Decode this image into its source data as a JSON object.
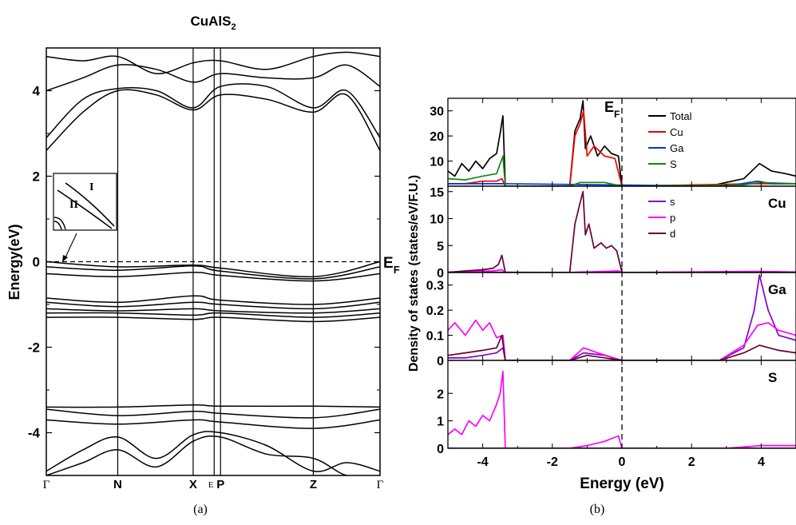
{
  "chart_data": [
    {
      "panel_label": "(a)",
      "type": "line",
      "title": "CuAlS",
      "title_sub": "2",
      "ylabel": "Energy(eV)",
      "ylim": [
        -5,
        5
      ],
      "yticks": [
        -4,
        -2,
        0,
        2,
        4
      ],
      "kpoint_labels": [
        "Γ",
        "N",
        "X",
        "E",
        "P",
        "Z",
        "Γ"
      ],
      "kpoint_positions": [
        0,
        0.214,
        0.44,
        0.503,
        0.522,
        0.8,
        1.0
      ],
      "fermi_label": "E",
      "fermi_sub": "F",
      "fermi_level": 0,
      "inset_labels": [
        "I",
        "II"
      ],
      "bands": [
        {
          "k": [
            0,
            0.11,
            0.214,
            0.33,
            0.44,
            0.522,
            0.66,
            0.8,
            0.9,
            1.0
          ],
          "e": [
            2.6,
            3.5,
            4.0,
            3.9,
            3.55,
            3.9,
            3.8,
            3.5,
            3.9,
            2.6
          ]
        },
        {
          "k": [
            0,
            0.11,
            0.214,
            0.33,
            0.44,
            0.522,
            0.66,
            0.8,
            0.9,
            1.0
          ],
          "e": [
            2.9,
            3.8,
            4.05,
            4.0,
            3.6,
            4.1,
            4.1,
            3.6,
            4.0,
            2.9
          ]
        },
        {
          "k": [
            0,
            0.11,
            0.214,
            0.33,
            0.44,
            0.522,
            0.66,
            0.8,
            0.9,
            1.0
          ],
          "e": [
            4.0,
            4.3,
            4.6,
            4.5,
            4.2,
            4.4,
            4.3,
            4.3,
            4.6,
            4.1
          ]
        },
        {
          "k": [
            0,
            0.11,
            0.214,
            0.33,
            0.44,
            0.522,
            0.66,
            0.8,
            0.9,
            1.0
          ],
          "e": [
            4.8,
            4.7,
            4.8,
            4.4,
            4.65,
            4.7,
            4.5,
            4.8,
            4.9,
            4.8
          ]
        },
        {
          "k": [
            0,
            0.214,
            0.44,
            0.522,
            0.8,
            1.0
          ],
          "e": [
            0.0,
            -0.12,
            -0.08,
            -0.15,
            -0.35,
            0.0
          ]
        },
        {
          "k": [
            0,
            0.214,
            0.44,
            0.522,
            0.8,
            1.0
          ],
          "e": [
            -0.12,
            -0.2,
            -0.1,
            -0.22,
            -0.4,
            -0.12
          ]
        },
        {
          "k": [
            0,
            0.214,
            0.44,
            0.522,
            0.8,
            1.0
          ],
          "e": [
            -0.28,
            -0.35,
            -0.25,
            -0.32,
            -0.45,
            -0.28
          ]
        },
        {
          "k": [
            0,
            0.214,
            0.44,
            0.522,
            0.8,
            1.0
          ],
          "e": [
            -0.85,
            -0.95,
            -0.8,
            -0.9,
            -1.0,
            -0.85
          ]
        },
        {
          "k": [
            0,
            0.214,
            0.44,
            0.522,
            0.8,
            1.0
          ],
          "e": [
            -0.95,
            -1.05,
            -0.95,
            -1.0,
            -1.1,
            -0.95
          ]
        },
        {
          "k": [
            0,
            0.214,
            0.44,
            0.522,
            0.8,
            1.0
          ],
          "e": [
            -1.1,
            -1.15,
            -1.1,
            -1.15,
            -1.2,
            -1.1
          ]
        },
        {
          "k": [
            0,
            0.214,
            0.44,
            0.522,
            0.8,
            1.0
          ],
          "e": [
            -1.2,
            -1.2,
            -1.25,
            -1.2,
            -1.3,
            -1.2
          ]
        },
        {
          "k": [
            0,
            0.214,
            0.44,
            0.522,
            0.8,
            1.0
          ],
          "e": [
            -1.3,
            -1.3,
            -1.35,
            -1.3,
            -1.4,
            -1.3
          ]
        },
        {
          "k": [
            0,
            0.214,
            0.44,
            0.522,
            0.8,
            1.0
          ],
          "e": [
            -3.4,
            -3.4,
            -3.35,
            -3.38,
            -3.38,
            -3.4
          ]
        },
        {
          "k": [
            0,
            0.214,
            0.44,
            0.522,
            0.8,
            1.0
          ],
          "e": [
            -3.45,
            -3.6,
            -3.5,
            -3.55,
            -3.65,
            -3.45
          ]
        },
        {
          "k": [
            0,
            0.214,
            0.44,
            0.522,
            0.8,
            1.0
          ],
          "e": [
            -3.7,
            -3.8,
            -3.7,
            -3.75,
            -3.9,
            -3.7
          ]
        },
        {
          "k": [
            0,
            0.11,
            0.214,
            0.33,
            0.44,
            0.522,
            0.66,
            0.8,
            0.9,
            1.0
          ],
          "e": [
            -4.9,
            -4.4,
            -4.1,
            -4.6,
            -4.05,
            -4.0,
            -4.3,
            -4.9,
            -4.7,
            -4.9
          ]
        },
        {
          "k": [
            0,
            0.11,
            0.214,
            0.33,
            0.44,
            0.522,
            0.66,
            0.8,
            0.9,
            1.0
          ],
          "e": [
            -5.0,
            -4.7,
            -4.4,
            -4.8,
            -4.2,
            -4.1,
            -4.5,
            -4.6,
            -5.0,
            -5.0
          ]
        }
      ]
    },
    {
      "panel_label": "(b)",
      "type": "line",
      "xlabel": "Energy (eV)",
      "ylabel": "Density of states (states/eV/F.U.)",
      "xlim": [
        -5,
        5
      ],
      "xticks": [
        -4,
        -2,
        0,
        2,
        4
      ],
      "fermi_label": "E",
      "fermi_sub": "F",
      "fermi_level": 0,
      "subplots": [
        {
          "ylim": [
            0,
            35
          ],
          "yticks": [
            10,
            20,
            30
          ],
          "tag": "",
          "series": [
            {
              "name": "Total",
              "color": "#000000",
              "x": [
                -5,
                -4.8,
                -4.6,
                -4.4,
                -4.2,
                -4.0,
                -3.8,
                -3.6,
                -3.5,
                -3.42,
                -3.35,
                -1.5,
                -1.35,
                -1.2,
                -1.12,
                -1.05,
                -0.9,
                -0.7,
                -0.5,
                -0.3,
                -0.1,
                0,
                2.5,
                3.5,
                3.95,
                4.3,
                4.7,
                5.0
              ],
              "y": [
                6,
                4,
                9,
                6,
                10,
                7,
                11,
                13,
                21,
                28,
                0,
                0,
                22,
                27,
                34,
                15,
                20,
                12,
                16,
                13,
                12,
                0,
                0,
                3,
                9,
                6,
                5,
                4
              ]
            },
            {
              "name": "Cu",
              "color": "#ee0000",
              "x": [
                -5,
                -4.5,
                -4.0,
                -3.6,
                -3.45,
                -3.35,
                -1.5,
                -1.35,
                -1.2,
                -1.1,
                -1.0,
                -0.8,
                -0.5,
                -0.2,
                0,
                3.9,
                5.0
              ],
              "y": [
                1,
                1,
                2,
                2,
                3,
                0,
                0,
                20,
                25,
                30,
                12,
                16,
                12,
                11,
                0,
                1,
                1
              ]
            },
            {
              "name": "Ga",
              "color": "#0033dd",
              "x": [
                -5,
                -3.4,
                3.0,
                3.9,
                4.3,
                5.0
              ],
              "y": [
                1,
                1,
                0,
                2,
                1,
                1
              ]
            },
            {
              "name": "S",
              "color": "#118811",
              "x": [
                -5,
                -4.5,
                -4.0,
                -3.6,
                -3.42,
                -3.35,
                -1.5,
                -1.2,
                -0.5,
                0,
                3.5,
                3.95,
                5.0
              ],
              "y": [
                3,
                2.5,
                4,
                5,
                12,
                0,
                0,
                1.5,
                1.5,
                0,
                0.5,
                1.5,
                1
              ]
            }
          ]
        },
        {
          "ylim": [
            0,
            16
          ],
          "yticks": [
            0,
            5,
            10,
            15
          ],
          "tag": "Cu",
          "series": [
            {
              "name": "s",
              "color": "#8800cc",
              "x": [
                -5,
                -3.5,
                -1.5,
                -1.1,
                0,
                3.9,
                5.0
              ],
              "y": [
                0,
                0.05,
                0,
                0.1,
                0,
                0.05,
                0
              ]
            },
            {
              "name": "p",
              "color": "#ff00ff",
              "x": [
                -5,
                -4.2,
                -3.7,
                -3.45,
                -3.35,
                -1.5,
                -0.5,
                -0.1,
                0,
                3.9,
                5.0
              ],
              "y": [
                0.1,
                0.2,
                0.3,
                0.5,
                0,
                0,
                0.2,
                0.3,
                0,
                0.2,
                0.1
              ]
            },
            {
              "name": "d",
              "color": "#660033",
              "x": [
                -5,
                -4.5,
                -4.0,
                -3.7,
                -3.55,
                -3.45,
                -3.35,
                -1.5,
                -1.35,
                -1.2,
                -1.12,
                -1.05,
                -0.95,
                -0.8,
                -0.6,
                -0.45,
                -0.3,
                -0.15,
                0,
                5.0
              ],
              "y": [
                0,
                0.3,
                0.5,
                0.8,
                1.5,
                3.2,
                0,
                0,
                9,
                13,
                15,
                7,
                9,
                4.5,
                5.5,
                4.5,
                5,
                4,
                0,
                0
              ]
            }
          ]
        },
        {
          "ylim": [
            0,
            0.35
          ],
          "yticks": [
            0,
            0.1,
            0.2,
            0.3
          ],
          "tag": "Ga",
          "series": [
            {
              "name": "s",
              "color": "#8800cc",
              "x": [
                -5,
                -4.5,
                -4.0,
                -3.6,
                -3.42,
                -3.35,
                -1.5,
                -1.1,
                -0.5,
                0,
                2.8,
                3.5,
                3.8,
                3.95,
                4.2,
                4.5,
                5.0
              ],
              "y": [
                0.01,
                0.01,
                0.02,
                0.03,
                0.05,
                0,
                0,
                0.03,
                0.02,
                0,
                0,
                0.05,
                0.2,
                0.34,
                0.2,
                0.1,
                0.08
              ]
            },
            {
              "name": "p",
              "color": "#ff00ff",
              "x": [
                -5,
                -4.8,
                -4.5,
                -4.2,
                -4.0,
                -3.8,
                -3.6,
                -3.42,
                -3.35,
                -1.5,
                -1.1,
                -0.7,
                0,
                2.8,
                3.5,
                3.9,
                4.2,
                4.5,
                5.0
              ],
              "y": [
                0.12,
                0.15,
                0.1,
                0.16,
                0.12,
                0.15,
                0.09,
                0.1,
                0,
                0,
                0.05,
                0.03,
                0,
                0,
                0.06,
                0.14,
                0.15,
                0.12,
                0.1
              ]
            },
            {
              "name": "d",
              "color": "#660033",
              "x": [
                -5,
                -4.5,
                -4.0,
                -3.6,
                -3.45,
                -3.35,
                -1.5,
                -1.0,
                0,
                2.8,
                3.5,
                3.95,
                4.5,
                5.0
              ],
              "y": [
                0.02,
                0.03,
                0.04,
                0.05,
                0.1,
                0,
                0,
                0.02,
                0,
                0,
                0.03,
                0.06,
                0.04,
                0.03
              ]
            }
          ]
        },
        {
          "ylim": [
            0,
            3.2
          ],
          "yticks": [
            0,
            1,
            2
          ],
          "tag": "S",
          "series": [
            {
              "name": "s",
              "color": "#8800cc",
              "x": [
                -5,
                -3.4,
                5.0
              ],
              "y": [
                0,
                0,
                0
              ]
            },
            {
              "name": "p",
              "color": "#ff00ff",
              "x": [
                -5,
                -4.8,
                -4.6,
                -4.4,
                -4.2,
                -4.0,
                -3.8,
                -3.6,
                -3.5,
                -3.42,
                -3.35,
                -1.5,
                -1.0,
                -0.5,
                -0.1,
                0,
                3.0,
                4.0,
                5.0
              ],
              "y": [
                0.5,
                0.7,
                0.5,
                1.0,
                0.8,
                1.2,
                1.0,
                1.6,
                2.0,
                2.8,
                0,
                0,
                0.1,
                0.25,
                0.45,
                0,
                0,
                0.1,
                0.1
              ]
            },
            {
              "name": "d",
              "color": "#660033",
              "x": [
                -5,
                5.0
              ],
              "y": [
                0,
                0
              ]
            }
          ]
        }
      ]
    }
  ]
}
